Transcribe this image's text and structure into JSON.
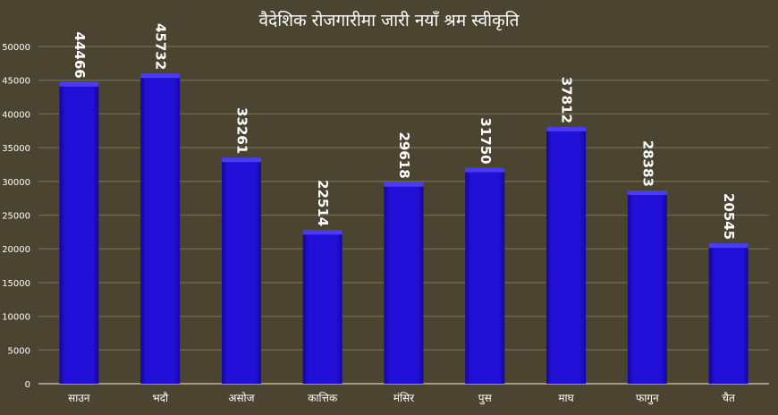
{
  "chart_data": {
    "type": "bar",
    "title": "वैदेशिक रोजगारीमा  जारी नयाँ श्रम स्वीकृति",
    "categories": [
      "साउन",
      "भदौ",
      "असोज",
      "कात्तिक",
      "मंसिर",
      "पुस",
      "माघ",
      "फागुन",
      "चैत"
    ],
    "values": [
      44466,
      45732,
      33261,
      22514,
      29618,
      31750,
      37812,
      28383,
      20545
    ],
    "ylim": [
      0,
      50000
    ],
    "yticks": [
      0,
      5000,
      10000,
      15000,
      20000,
      25000,
      30000,
      35000,
      40000,
      45000,
      50000
    ],
    "xlabel": "",
    "ylabel": "",
    "grid": true,
    "data_labels": "rotated-vertical",
    "colors": {
      "background": "#4a4430",
      "bar": "#1f0bd0",
      "bar_top": "#4a3cf0",
      "grid": "#6b664d",
      "text": "#ffffff"
    }
  }
}
